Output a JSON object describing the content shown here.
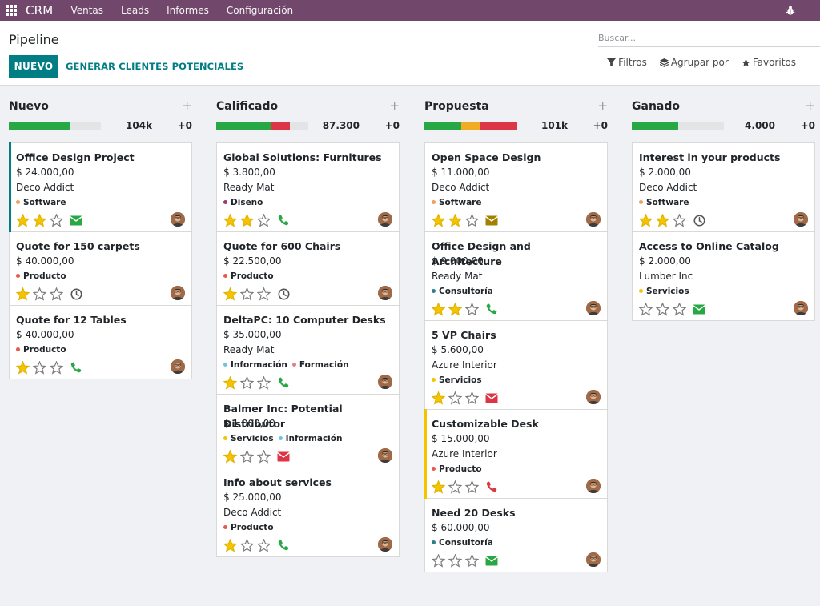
{
  "app": {
    "brand": "CRM",
    "menu": [
      "Ventas",
      "Leads",
      "Informes",
      "Configuración"
    ]
  },
  "control": {
    "title": "Pipeline",
    "search_placeholder": "Buscar...",
    "new_label": "NUEVO",
    "generate_label": "GENERAR CLIENTES POTENCIALES",
    "filters_label": "Filtros",
    "group_label": "Agrupar por",
    "favorites_label": "Favoritos"
  },
  "colors": {
    "brand": "#71486b",
    "accent": "#017e84",
    "green": "#28a745",
    "orange": "#f0ad24",
    "red": "#dc3545",
    "grey": "#e3e4e6"
  },
  "columns": [
    {
      "title": "Nuevo",
      "total": "104k",
      "increase": "+0",
      "progress": [
        {
          "color": "#28a745",
          "fraction": 0.67
        }
      ],
      "cards": [
        {
          "name": "Office Design Project",
          "amount": "$ 24.000,00",
          "partner": "Deco Addict",
          "tags": [
            {
              "label": "Software",
              "color": "#f0a05a"
            }
          ],
          "stars": 2,
          "activity": "envelope-icon",
          "activity_color": "#28a745",
          "accent": "#017e84"
        },
        {
          "name": "Quote for 150 carpets",
          "amount": "$ 40.000,00",
          "partner": "",
          "tags": [
            {
              "label": "Producto",
              "color": "#e8584a"
            }
          ],
          "stars": 1,
          "activity": "clock-icon",
          "activity_color": "#555555",
          "accent": ""
        },
        {
          "name": "Quote for 12 Tables",
          "amount": "$ 40.000,00",
          "partner": "",
          "tags": [
            {
              "label": "Producto",
              "color": "#e8584a"
            }
          ],
          "stars": 1,
          "activity": "phone-icon",
          "activity_color": "#28a745",
          "accent": ""
        }
      ]
    },
    {
      "title": "Calificado",
      "total": "87.300",
      "increase": "+0",
      "progress": [
        {
          "color": "#28a745",
          "fraction": 0.6
        },
        {
          "color": "#dc3545",
          "fraction": 0.2
        }
      ],
      "cards": [
        {
          "name": "Global Solutions: Furnitures",
          "amount": "$ 3.800,00",
          "partner": "Ready Mat",
          "tags": [
            {
              "label": "Diseño",
              "color": "#9b3a6a"
            }
          ],
          "stars": 2,
          "activity": "phone-icon",
          "activity_color": "#28a745",
          "accent": ""
        },
        {
          "name": "Quote for 600 Chairs",
          "amount": "$ 22.500,00",
          "partner": "",
          "tags": [
            {
              "label": "Producto",
              "color": "#e8584a"
            }
          ],
          "stars": 1,
          "activity": "clock-icon",
          "activity_color": "#555555",
          "accent": ""
        },
        {
          "name": "DeltaPC: 10 Computer Desks",
          "amount": "$ 35.000,00",
          "partner": "Ready Mat",
          "tags": [
            {
              "label": "Información",
              "color": "#6ec3e8"
            },
            {
              "label": "Formación",
              "color": "#e87a8a"
            }
          ],
          "stars": 1,
          "activity": "phone-icon",
          "activity_color": "#28a745",
          "accent": ""
        },
        {
          "name": "Balmer Inc: Potential Distributor",
          "amount": "$ 1.000,00",
          "partner": "",
          "tags": [
            {
              "label": "Servicios",
              "color": "#f5c400"
            },
            {
              "label": "Información",
              "color": "#6ec3e8"
            }
          ],
          "stars": 1,
          "activity": "envelope-icon",
          "activity_color": "#dc3545",
          "accent": ""
        },
        {
          "name": "Info about services",
          "amount": "$ 25.000,00",
          "partner": "Deco Addict",
          "tags": [
            {
              "label": "Producto",
              "color": "#e8584a"
            }
          ],
          "stars": 1,
          "activity": "phone-icon",
          "activity_color": "#28a745",
          "accent": ""
        }
      ]
    },
    {
      "title": "Propuesta",
      "total": "101k",
      "increase": "+0",
      "progress": [
        {
          "color": "#28a745",
          "fraction": 0.4
        },
        {
          "color": "#f0ad24",
          "fraction": 0.2
        },
        {
          "color": "#dc3545",
          "fraction": 0.4
        }
      ],
      "cards": [
        {
          "name": "Open Space Design",
          "amount": "$ 11.000,00",
          "partner": "Deco Addict",
          "tags": [
            {
              "label": "Software",
              "color": "#f0a05a"
            }
          ],
          "stars": 2,
          "activity": "envelope-icon",
          "activity_color": "#a38000",
          "accent": ""
        },
        {
          "name": "Office Design and Architecture",
          "amount": "$ 9.000,00",
          "partner": "Ready Mat",
          "tags": [
            {
              "label": "Consultoría",
              "color": "#2d7f8a"
            }
          ],
          "stars": 2,
          "activity": "phone-icon",
          "activity_color": "#28a745",
          "accent": ""
        },
        {
          "name": "5 VP Chairs",
          "amount": "$ 5.600,00",
          "partner": "Azure Interior",
          "tags": [
            {
              "label": "Servicios",
              "color": "#f5c400"
            }
          ],
          "stars": 1,
          "activity": "envelope-icon",
          "activity_color": "#dc3545",
          "accent": ""
        },
        {
          "name": "Customizable Desk",
          "amount": "$ 15.000,00",
          "partner": "Azure Interior",
          "tags": [
            {
              "label": "Producto",
              "color": "#e8584a"
            }
          ],
          "stars": 1,
          "activity": "phone-icon",
          "activity_color": "#dc3545",
          "accent": "#f5c400"
        },
        {
          "name": "Need 20 Desks",
          "amount": "$ 60.000,00",
          "partner": "",
          "tags": [
            {
              "label": "Consultoría",
              "color": "#2d7f8a"
            }
          ],
          "stars": 0,
          "activity": "envelope-icon",
          "activity_color": "#28a745",
          "accent": ""
        }
      ]
    },
    {
      "title": "Ganado",
      "total": "4.000",
      "increase": "+0",
      "progress": [
        {
          "color": "#28a745",
          "fraction": 0.5
        }
      ],
      "cards": [
        {
          "name": "Interest in your products",
          "amount": "$ 2.000,00",
          "partner": "Deco Addict",
          "tags": [
            {
              "label": "Software",
              "color": "#f0a05a"
            }
          ],
          "stars": 2,
          "activity": "clock-icon",
          "activity_color": "#555555",
          "accent": ""
        },
        {
          "name": "Access to Online Catalog",
          "amount": "$ 2.000,00",
          "partner": "Lumber Inc",
          "tags": [
            {
              "label": "Servicios",
              "color": "#f5c400"
            }
          ],
          "stars": 0,
          "activity": "envelope-icon",
          "activity_color": "#28a745",
          "accent": ""
        }
      ]
    }
  ]
}
